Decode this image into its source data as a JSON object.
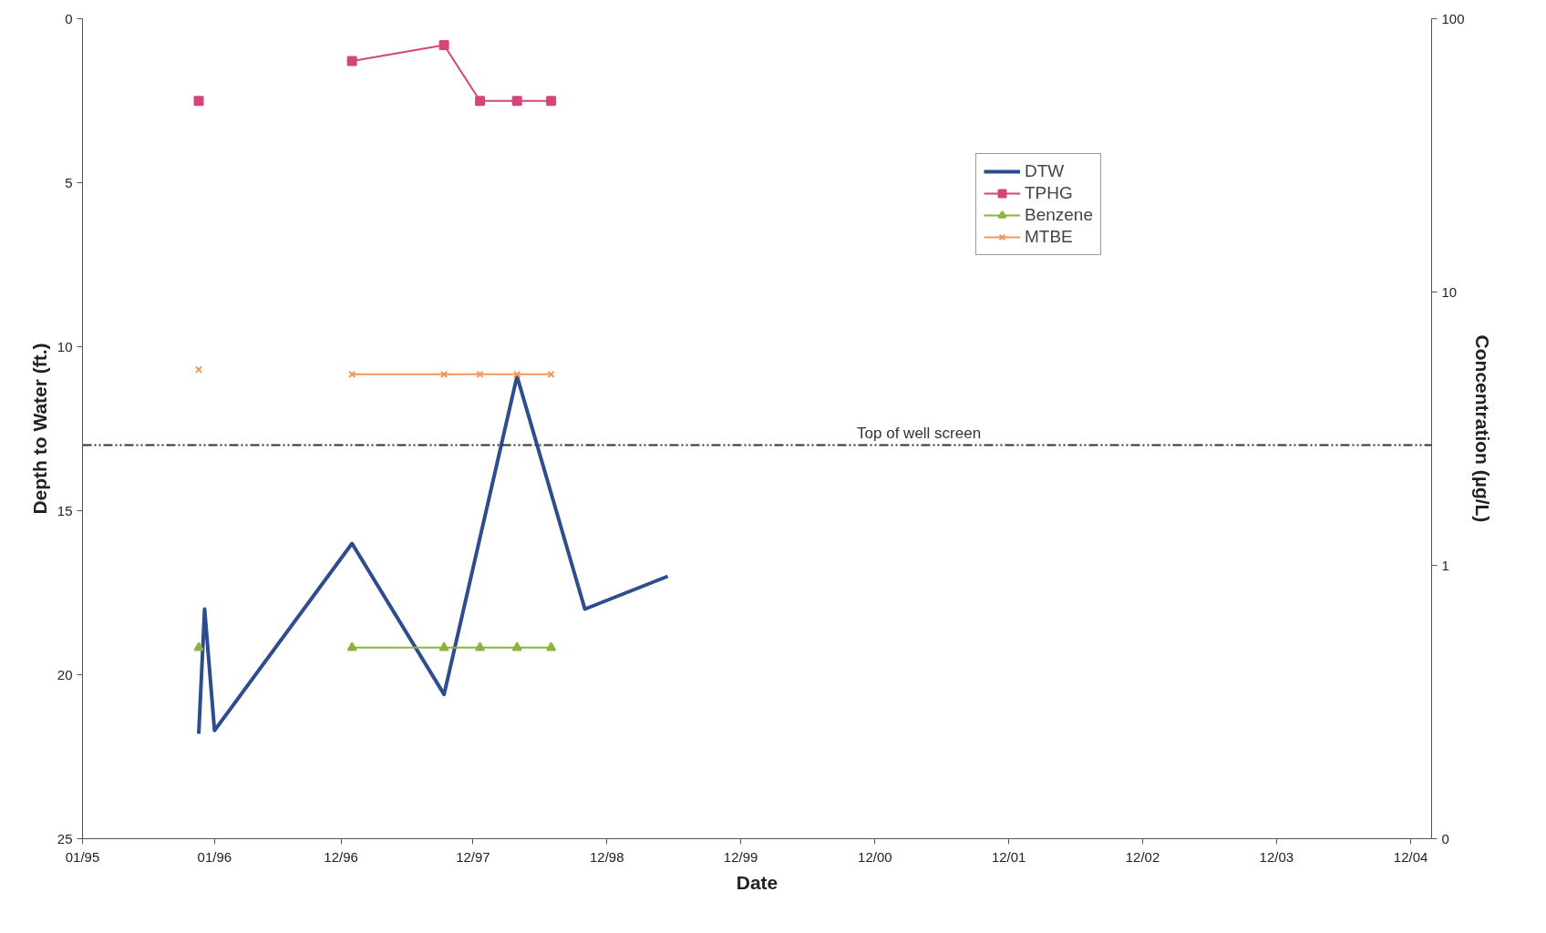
{
  "chart_data": {
    "type": "line",
    "xlabel": "Date",
    "ylabel": "Depth to Water (ft.)",
    "y2label": "Concentration (µg/L)",
    "xlim": [
      "1995-01-15",
      "2005-02-10"
    ],
    "xticks": [
      {
        "value": "1995-01-15",
        "label": "01/95"
      },
      {
        "value": "1996-01-10",
        "label": "01/96"
      },
      {
        "value": "1996-12-20",
        "label": "12/96"
      },
      {
        "value": "1997-12-15",
        "label": "12/97"
      },
      {
        "value": "1998-12-15",
        "label": "12/98"
      },
      {
        "value": "1999-12-15",
        "label": "12/99"
      },
      {
        "value": "2000-12-15",
        "label": "12/00"
      },
      {
        "value": "2001-12-15",
        "label": "12/01"
      },
      {
        "value": "2002-12-15",
        "label": "12/02"
      },
      {
        "value": "2003-12-15",
        "label": "12/03"
      },
      {
        "value": "2004-12-15",
        "label": "12/04"
      }
    ],
    "ylim": [
      25,
      0
    ],
    "yticks": [
      0,
      5,
      10,
      15,
      20,
      25
    ],
    "y2lim": [
      0.1,
      100
    ],
    "y2ticks": [
      {
        "value": 0.1,
        "label": "0"
      },
      1,
      10,
      100
    ],
    "log": "y2",
    "grid": false,
    "legend": "top right",
    "series": [
      {
        "name": "DTW",
        "color": "#2e4d8f",
        "marker": "none",
        "x": [
          "1995-11-28",
          "1995-12-14",
          "1996-01-10",
          "1997-01-19",
          "1997-09-27",
          "1998-04-14",
          "1998-10-16",
          "1999-05-30"
        ],
        "values": [
          21.8,
          18.0,
          21.7,
          16.0,
          20.6,
          10.9,
          18.0,
          17.0
        ]
      },
      {
        "name": "TPHG",
        "color": "#d6457a",
        "marker": "square",
        "axis": "y2",
        "x": [
          "1995-11-28",
          "1996-01-10",
          "1997-01-19",
          "1997-09-27",
          "1998-01-03",
          "1998-04-14",
          "1998-07-16"
        ],
        "values": [
          50,
          null,
          70,
          80,
          50,
          50,
          50
        ]
      },
      {
        "name": "Benzene",
        "color": "#8cb43c",
        "marker": "triangle",
        "axis": "y2",
        "x": [
          "1995-11-28",
          "1996-01-10",
          "1997-01-19",
          "1997-09-27",
          "1998-01-03",
          "1998-04-14",
          "1998-07-16"
        ],
        "values": [
          0.5,
          null,
          0.5,
          0.5,
          0.5,
          0.5,
          0.5
        ]
      },
      {
        "name": "MTBE",
        "color": "#f0985a",
        "marker": "cross",
        "axis": "y2",
        "x": [
          "1995-11-28",
          "1996-01-10",
          "1997-01-19",
          "1997-09-27",
          "1998-01-03",
          "1998-04-14",
          "1998-07-16"
        ],
        "values": [
          5.2,
          null,
          5,
          5,
          5,
          5,
          5
        ]
      }
    ],
    "ref_lines": [
      {
        "axis": "y",
        "value": 13,
        "label": "Top of well screen",
        "color": "#333333",
        "line_style": "dashdotdot"
      }
    ]
  }
}
